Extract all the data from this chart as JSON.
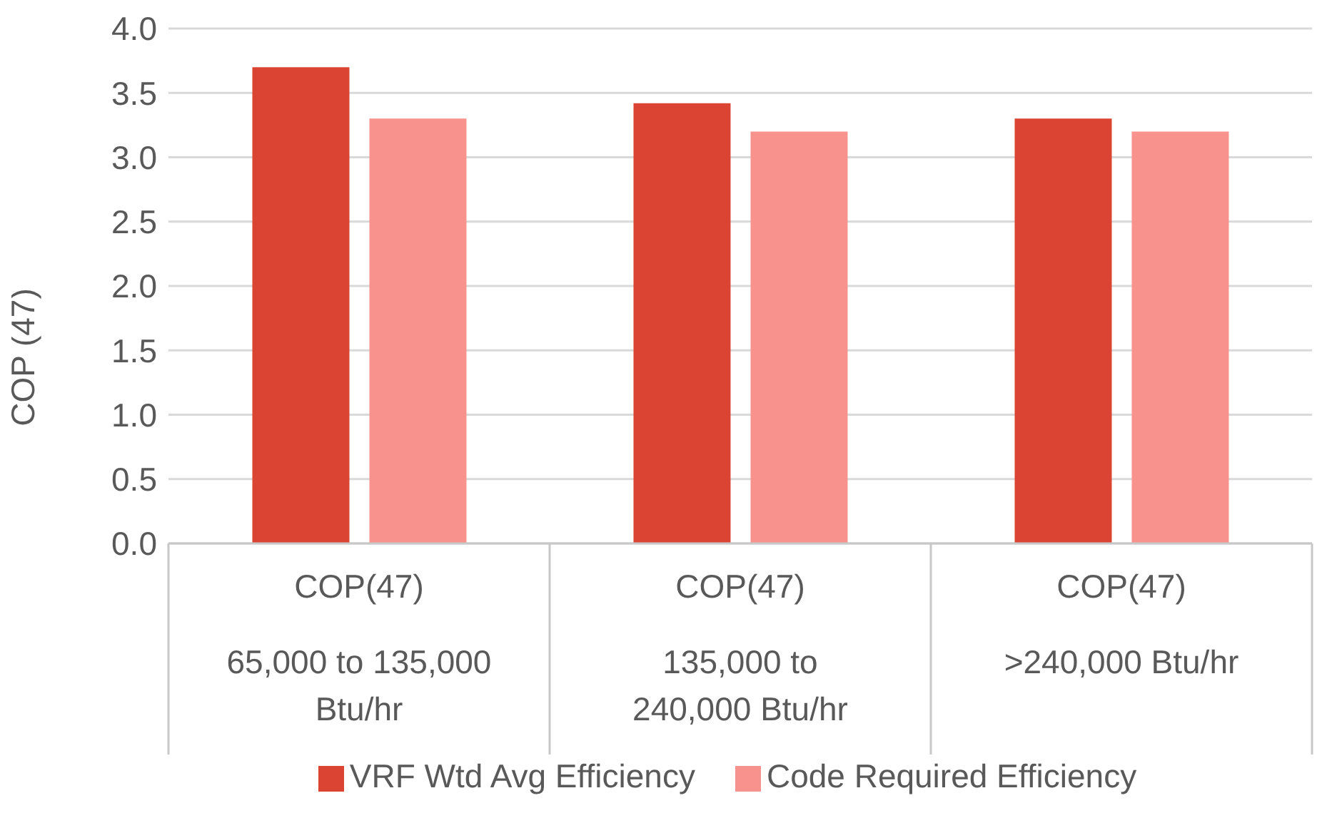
{
  "chart_data": {
    "type": "bar",
    "ylabel": "COP (47)",
    "categories": [
      "COP(47)\n65,000 to 135,000\nBtu/hr",
      "COP(47)\n135,000 to\n240,000 Btu/hr",
      "COP(47)\n>240,000 Btu/hr"
    ],
    "series": [
      {
        "name": "VRF Wtd Avg Efficiency",
        "color": "#db4432",
        "values": [
          3.7,
          3.42,
          3.3
        ]
      },
      {
        "name": "Code Required Efficiency",
        "color": "#f7928c",
        "values": [
          3.3,
          3.2,
          3.2
        ]
      }
    ],
    "ylim": [
      0,
      4
    ],
    "yticks": [
      {
        "value": 0,
        "label": "0.0"
      },
      {
        "value": 0.5,
        "label": "0.5"
      },
      {
        "value": 1,
        "label": "1.0"
      },
      {
        "value": 1.5,
        "label": "1.5"
      },
      {
        "value": 2,
        "label": "2.0"
      },
      {
        "value": 2.5,
        "label": "2.5"
      },
      {
        "value": 3,
        "label": "3.0"
      },
      {
        "value": 3.5,
        "label": "3.5"
      },
      {
        "value": 4,
        "label": "4.0"
      }
    ],
    "grid": "y",
    "legend": "bottom"
  }
}
